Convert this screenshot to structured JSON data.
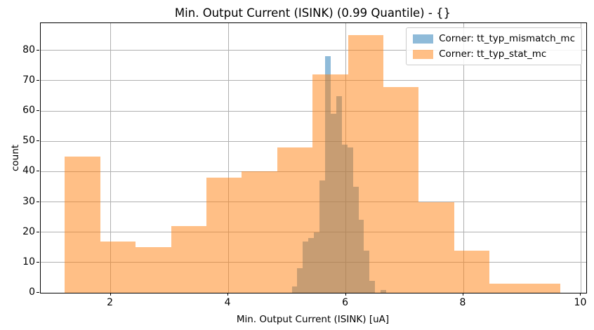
{
  "title": "Min. Output Current (ISINK) (0.99 Quantile) - {}",
  "xlabel": "Min. Output Current (ISINK) [uA]",
  "ylabel": "count",
  "legend": {
    "items": [
      {
        "label": "Corner: tt_typ_mismatch_mc",
        "color": "#1f77b4"
      },
      {
        "label": "Corner: tt_typ_stat_mc",
        "color": "#ff7f0e"
      }
    ]
  },
  "colors": {
    "mismatch_fill": "rgba(31,119,180,0.5)",
    "stat_fill": "rgba(255,127,14,0.5)",
    "grid": "#b0b0b0",
    "spine": "#000000",
    "background": "#ffffff"
  },
  "chart_data": {
    "type": "bar",
    "subtype": "overlapping-histograms",
    "title": "Min. Output Current (ISINK) (0.99 Quantile) - {}",
    "xlabel": "Min. Output Current (ISINK) [uA]",
    "ylabel": "count",
    "xlim": [
      0.81,
      10.09
    ],
    "ylim": [
      0,
      89
    ],
    "xticks": [
      2,
      4,
      6,
      8,
      10
    ],
    "yticks": [
      0,
      10,
      20,
      30,
      40,
      50,
      60,
      70,
      80
    ],
    "grid": true,
    "legend_position": "upper right",
    "series": [
      {
        "name": "Corner: tt_typ_mismatch_mc",
        "color": "#1f77b4",
        "alpha": 0.5,
        "bin_start": 5.08,
        "bin_width": 0.0946,
        "counts": [
          2,
          8,
          17,
          18,
          20,
          37,
          78,
          59,
          65,
          49,
          48,
          35,
          24,
          14,
          4,
          0,
          1
        ]
      },
      {
        "name": "Corner: tt_typ_stat_mc",
        "color": "#ff7f0e",
        "alpha": 0.5,
        "bin_start": 1.22,
        "bin_width": 0.602,
        "counts": [
          45,
          17,
          15,
          22,
          38,
          40,
          48,
          72,
          85,
          68,
          30,
          14,
          3,
          3
        ]
      }
    ]
  }
}
